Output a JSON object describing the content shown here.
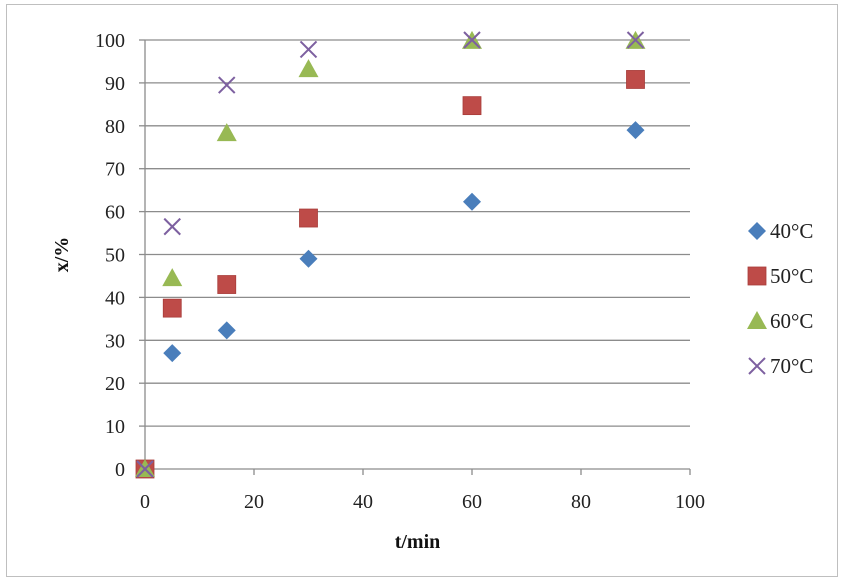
{
  "chart_data": {
    "type": "scatter",
    "title": "",
    "xlabel": "t/min",
    "ylabel": "x/%",
    "xlim": [
      0,
      100
    ],
    "ylim": [
      0,
      100
    ],
    "xticks": [
      0,
      20,
      40,
      60,
      80,
      100
    ],
    "yticks": [
      0,
      10,
      20,
      30,
      40,
      50,
      60,
      70,
      80,
      90,
      100
    ],
    "grid": "horizontal",
    "legend_position": "right",
    "series": [
      {
        "name": "40°C",
        "marker": "diamond",
        "color": "#4a7ebb",
        "x": [
          0,
          5,
          15,
          30,
          60,
          90
        ],
        "y": [
          0,
          27,
          32.3,
          49,
          62.3,
          79
        ]
      },
      {
        "name": "50°C",
        "marker": "square",
        "color": "#be4b48",
        "x": [
          0,
          5,
          15,
          30,
          60,
          90
        ],
        "y": [
          0,
          37.5,
          43,
          58.5,
          84.7,
          90.8
        ]
      },
      {
        "name": "60°C",
        "marker": "triangle",
        "color": "#98b954",
        "x": [
          0,
          5,
          15,
          30,
          60,
          90
        ],
        "y": [
          0,
          44.5,
          78.3,
          93.2,
          99.8,
          99.8
        ]
      },
      {
        "name": "70°C",
        "marker": "x",
        "color": "#7d60a0",
        "x": [
          0,
          5,
          15,
          30,
          60,
          90
        ],
        "y": [
          0,
          56.5,
          89.5,
          97.8,
          100,
          100
        ]
      }
    ]
  }
}
